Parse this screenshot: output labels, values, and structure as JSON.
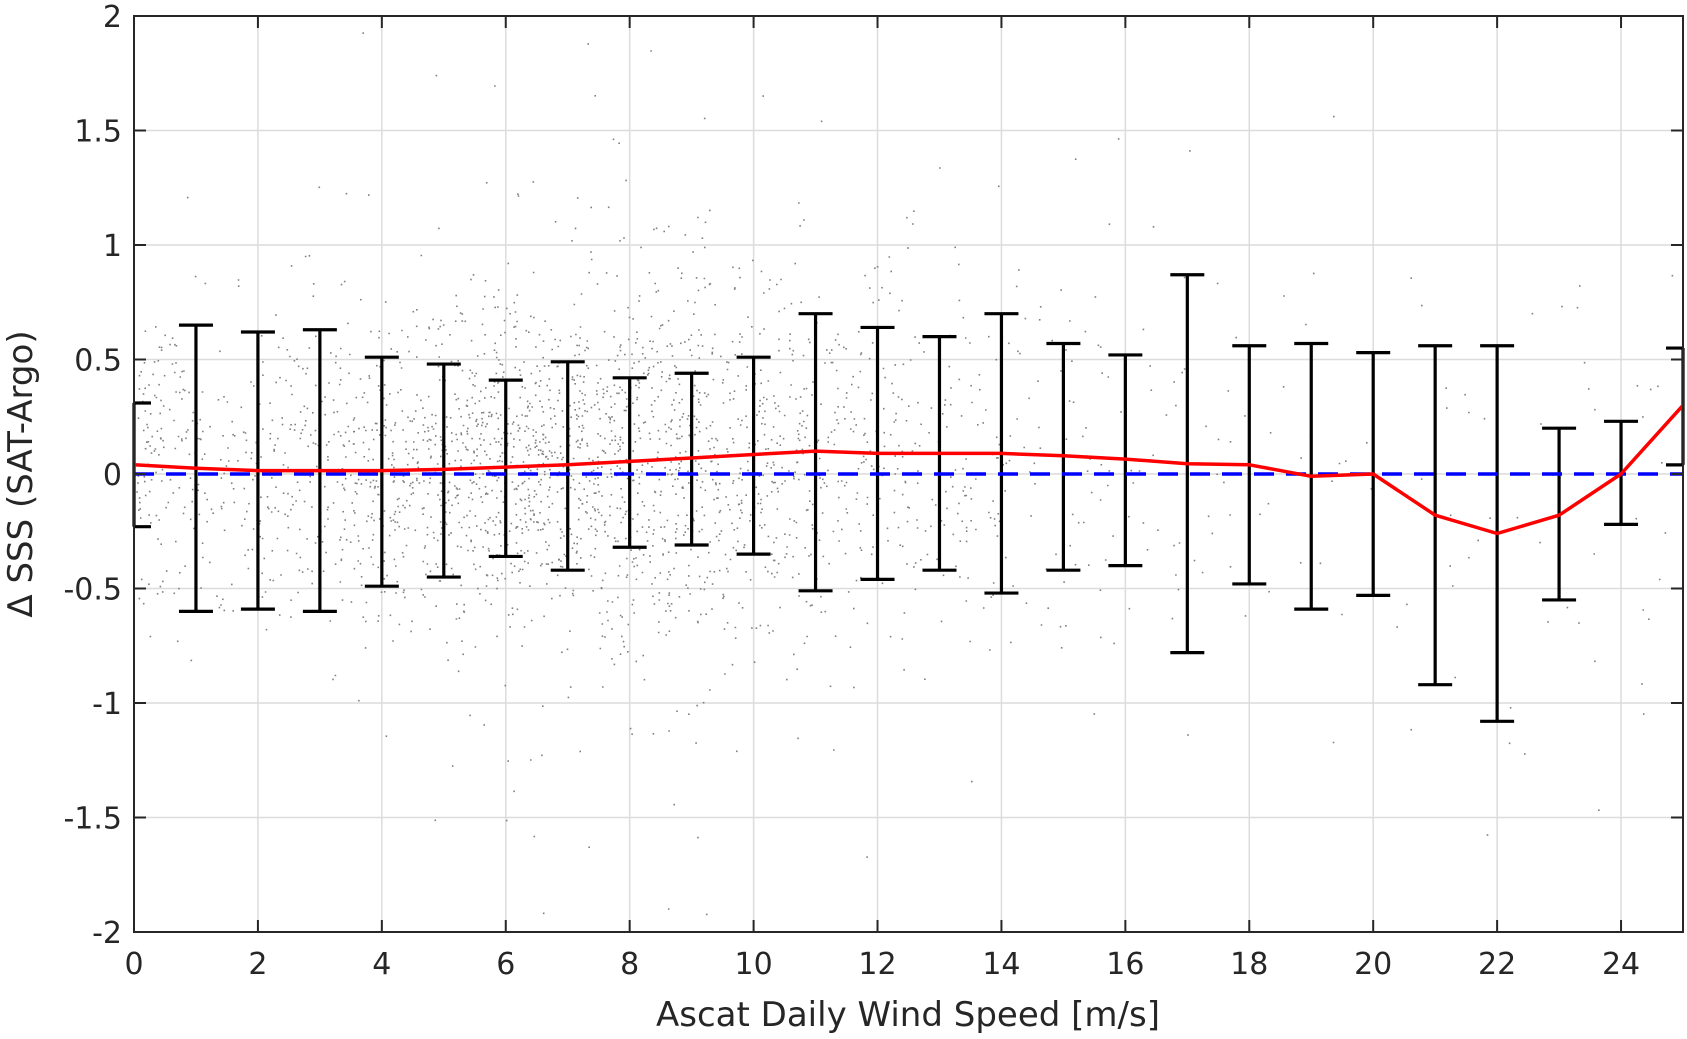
{
  "chart_data": {
    "type": "scatter",
    "xlabel": "Ascat Daily Wind Speed [m/s]",
    "ylabel": "Δ SSS (SAT-Argo)",
    "xlim": [
      0,
      25
    ],
    "ylim": [
      -2,
      2
    ],
    "x_ticks": [
      0,
      2,
      4,
      6,
      8,
      10,
      12,
      14,
      16,
      18,
      20,
      22,
      24
    ],
    "x_tick_labels": [
      "0",
      "2",
      "4",
      "6",
      "8",
      "10",
      "12",
      "14",
      "16",
      "18",
      "20",
      "22",
      "24"
    ],
    "y_ticks": [
      2,
      1.5,
      1,
      0.5,
      0,
      -0.5,
      -1,
      -1.5,
      -2
    ],
    "y_tick_labels": [
      "2",
      "1.5",
      "1",
      "0.5",
      "0",
      "-0.5",
      "-1",
      "-1.5",
      "-2"
    ],
    "grid": true,
    "colors": {
      "scatter": "#808080",
      "mean_line": "#ff0000",
      "zero_line": "#0000ff",
      "error_bars": "#000000",
      "grid": "#dcdcdc",
      "axes": "#262626"
    },
    "mean_curve": {
      "x": [
        0,
        1,
        2,
        3,
        4,
        5,
        6,
        7,
        8,
        9,
        10,
        11,
        12,
        13,
        14,
        15,
        16,
        17,
        18,
        19,
        20,
        21,
        22,
        23,
        24,
        25
      ],
      "y": [
        0.04,
        0.025,
        0.015,
        0.015,
        0.015,
        0.02,
        0.03,
        0.04,
        0.055,
        0.07,
        0.085,
        0.1,
        0.09,
        0.09,
        0.09,
        0.08,
        0.065,
        0.045,
        0.04,
        -0.01,
        0.0,
        -0.18,
        -0.26,
        -0.18,
        0.0,
        0.3
      ]
    },
    "error_bars": {
      "x": [
        0,
        1,
        2,
        3,
        4,
        5,
        6,
        7,
        8,
        9,
        10,
        11,
        12,
        13,
        14,
        15,
        16,
        17,
        18,
        19,
        20,
        21,
        22,
        23,
        24,
        25
      ],
      "upper": [
        0.31,
        0.65,
        0.62,
        0.63,
        0.51,
        0.48,
        0.41,
        0.49,
        0.42,
        0.44,
        0.51,
        0.7,
        0.64,
        0.6,
        0.7,
        0.57,
        0.52,
        0.87,
        0.56,
        0.57,
        0.53,
        0.56,
        0.56,
        0.2,
        0.23,
        0.55
      ],
      "lower": [
        -0.23,
        -0.6,
        -0.59,
        -0.6,
        -0.49,
        -0.45,
        -0.36,
        -0.42,
        -0.32,
        -0.31,
        -0.35,
        -0.51,
        -0.46,
        -0.42,
        -0.52,
        -0.42,
        -0.4,
        -0.78,
        -0.48,
        -0.59,
        -0.53,
        -0.92,
        -1.08,
        -0.55,
        -0.22,
        0.04
      ]
    },
    "zero_reference": 0,
    "scatter_cloud": {
      "x_range": [
        0,
        25
      ],
      "y_range": [
        -2,
        2
      ],
      "point_count_drawn": 60000
    }
  }
}
